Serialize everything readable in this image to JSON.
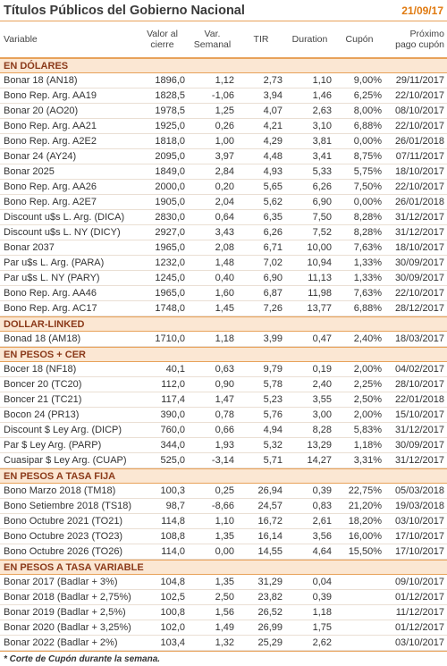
{
  "header": {
    "title": "Títulos Públicos del Gobierno Nacional",
    "date": "21/09/17"
  },
  "columns": [
    "Variable",
    "Valor al\ncierre",
    "Var.\nSemanal",
    "TIR",
    "Duration",
    "Cupón",
    "Próximo\npago cupón"
  ],
  "sections": [
    {
      "name": "EN DÓLARES",
      "rows": [
        [
          "Bonar 18 (AN18)",
          "1896,0",
          "1,12",
          "2,73",
          "1,10",
          "9,00%",
          "29/11/2017"
        ],
        [
          "Bono Rep. Arg. AA19",
          "1828,5",
          "-1,06",
          "3,94",
          "1,46",
          "6,25%",
          "22/10/2017"
        ],
        [
          "Bonar 20 (AO20)",
          "1978,5",
          "1,25",
          "4,07",
          "2,63",
          "8,00%",
          "08/10/2017"
        ],
        [
          "Bono Rep. Arg. AA21",
          "1925,0",
          "0,26",
          "4,21",
          "3,10",
          "6,88%",
          "22/10/2017"
        ],
        [
          "Bono Rep. Arg. A2E2",
          "1818,0",
          "1,00",
          "4,29",
          "3,81",
          "0,00%",
          "26/01/2018"
        ],
        [
          "Bonar 24 (AY24)",
          "2095,0",
          "3,97",
          "4,48",
          "3,41",
          "8,75%",
          "07/11/2017"
        ],
        [
          "Bonar 2025",
          "1849,0",
          "2,84",
          "4,93",
          "5,33",
          "5,75%",
          "18/10/2017"
        ],
        [
          "Bono Rep. Arg. AA26",
          "2000,0",
          "0,20",
          "5,65",
          "6,26",
          "7,50%",
          "22/10/2017"
        ],
        [
          "Bono Rep. Arg. A2E7",
          "1905,0",
          "2,04",
          "5,62",
          "6,90",
          "0,00%",
          "26/01/2018"
        ],
        [
          "Discount u$s L. Arg. (DICA)",
          "2830,0",
          "0,64",
          "6,35",
          "7,50",
          "8,28%",
          "31/12/2017"
        ],
        [
          "Discount u$s L. NY (DICY)",
          "2927,0",
          "3,43",
          "6,26",
          "7,52",
          "8,28%",
          "31/12/2017"
        ],
        [
          "Bonar 2037",
          "1965,0",
          "2,08",
          "6,71",
          "10,00",
          "7,63%",
          "18/10/2017"
        ],
        [
          "Par u$s L. Arg. (PARA)",
          "1232,0",
          "1,48",
          "7,02",
          "10,94",
          "1,33%",
          "30/09/2017"
        ],
        [
          "Par u$s L. NY (PARY)",
          "1245,0",
          "0,40",
          "6,90",
          "11,13",
          "1,33%",
          "30/09/2017"
        ],
        [
          "Bono Rep. Arg. AA46",
          "1965,0",
          "1,60",
          "6,87",
          "11,98",
          "7,63%",
          "22/10/2017"
        ],
        [
          "Bono Rep. Arg. AC17",
          "1748,0",
          "1,45",
          "7,26",
          "13,77",
          "6,88%",
          "28/12/2017"
        ]
      ]
    },
    {
      "name": "DOLLAR-LINKED",
      "rows": [
        [
          "Bonad 18 (AM18)",
          "1710,0",
          "1,18",
          "3,99",
          "0,47",
          "2,40%",
          "18/03/2017"
        ]
      ]
    },
    {
      "name": "EN PESOS + CER",
      "rows": [
        [
          "Bocer 18 (NF18)",
          "40,1",
          "0,63",
          "9,79",
          "0,19",
          "2,00%",
          "04/02/2017"
        ],
        [
          "Boncer 20 (TC20)",
          "112,0",
          "0,90",
          "5,78",
          "2,40",
          "2,25%",
          "28/10/2017"
        ],
        [
          "Boncer 21 (TC21)",
          "117,4",
          "1,47",
          "5,23",
          "3,55",
          "2,50%",
          "22/01/2018"
        ],
        [
          "Bocon 24 (PR13)",
          "390,0",
          "0,78",
          "5,76",
          "3,00",
          "2,00%",
          "15/10/2017"
        ],
        [
          "Discount $ Ley Arg. (DICP)",
          "760,0",
          "0,66",
          "4,94",
          "8,28",
          "5,83%",
          "31/12/2017"
        ],
        [
          "Par $ Ley Arg. (PARP)",
          "344,0",
          "1,93",
          "5,32",
          "13,29",
          "1,18%",
          "30/09/2017"
        ],
        [
          "Cuasipar $ Ley Arg. (CUAP)",
          "525,0",
          "-3,14",
          "5,71",
          "14,27",
          "3,31%",
          "31/12/2017"
        ]
      ]
    },
    {
      "name": "EN PESOS A TASA FIJA",
      "rows": [
        [
          "Bono Marzo 2018 (TM18)",
          "100,3",
          "0,25",
          "26,94",
          "0,39",
          "22,75%",
          "05/03/2018"
        ],
        [
          "Bono Setiembre 2018 (TS18)",
          "98,7",
          "-8,66",
          "24,57",
          "0,83",
          "21,20%",
          "19/03/2018"
        ],
        [
          "Bono Octubre 2021 (TO21)",
          "114,8",
          "1,10",
          "16,72",
          "2,61",
          "18,20%",
          "03/10/2017"
        ],
        [
          "Bono Octubre 2023 (TO23)",
          "108,8",
          "1,35",
          "16,14",
          "3,56",
          "16,00%",
          "17/10/2017"
        ],
        [
          "Bono Octubre 2026 (TO26)",
          "114,0",
          "0,00",
          "14,55",
          "4,64",
          "15,50%",
          "17/10/2017"
        ]
      ]
    },
    {
      "name": "EN PESOS A TASA VARIABLE",
      "rows": [
        [
          "Bonar 2017 (Badlar + 3%)",
          "104,8",
          "1,35",
          "31,29",
          "0,04",
          null,
          "09/10/2017"
        ],
        [
          "Bonar 2018 (Badlar + 2,75%)",
          "102,5",
          "2,50",
          "23,82",
          "0,39",
          null,
          "01/12/2017"
        ],
        [
          "Bonar 2019 (Badlar + 2,5%)",
          "100,8",
          "1,56",
          "26,52",
          "1,18",
          null,
          "11/12/2017"
        ],
        [
          "Bonar 2020 (Badlar + 3,25%)",
          "102,0",
          "1,49",
          "26,99",
          "1,75",
          null,
          "01/12/2017"
        ],
        [
          "Bonar 2022 (Badlar + 2%)",
          "103,4",
          "1,32",
          "25,29",
          "2,62",
          null,
          "03/10/2017"
        ]
      ]
    }
  ],
  "footnote": "* Corte de Cupón durante la semana."
}
